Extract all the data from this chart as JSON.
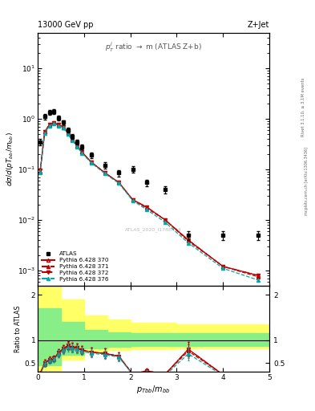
{
  "title_left": "13000 GeV pp",
  "title_right": "Z+Jet",
  "inner_title": "$p_T^j$ ratio $\\rightarrow$ m (ATLAS Z+b)",
  "watermark": "ATLAS_2020_I1788444",
  "ylabel_main": "$d\\sigma/d(pT_{bb}/m_{bb})$",
  "ylabel_ratio": "Ratio to ATLAS",
  "xlabel": "$p_{Tbb}/m_{bb}$",
  "right_label_top": "Rivet 3.1.10, ≥ 3.1M events",
  "right_label_bot": "mcplots.cern.ch [arXiv:1306.3436]",
  "xlim": [
    0,
    5.0
  ],
  "ylim_main": [
    0.0005,
    50
  ],
  "ylim_ratio": [
    0.3,
    2.2
  ],
  "atlas_x": [
    0.05,
    0.15,
    0.25,
    0.35,
    0.45,
    0.55,
    0.65,
    0.75,
    0.85,
    0.95,
    1.15,
    1.45,
    1.75,
    2.05,
    2.35,
    2.75,
    3.25,
    4.0,
    4.75
  ],
  "atlas_y": [
    0.35,
    1.1,
    1.35,
    1.4,
    1.05,
    0.85,
    0.6,
    0.45,
    0.35,
    0.28,
    0.19,
    0.12,
    0.085,
    0.1,
    0.055,
    0.04,
    0.005,
    0.005,
    0.005
  ],
  "atlas_yerr": [
    0.05,
    0.15,
    0.15,
    0.15,
    0.12,
    0.09,
    0.06,
    0.05,
    0.04,
    0.03,
    0.025,
    0.018,
    0.012,
    0.015,
    0.008,
    0.007,
    0.001,
    0.001,
    0.001
  ],
  "py370_y": [
    0.09,
    0.55,
    0.75,
    0.82,
    0.75,
    0.68,
    0.52,
    0.38,
    0.29,
    0.22,
    0.14,
    0.085,
    0.055,
    0.025,
    0.018,
    0.01,
    0.004,
    0.0012,
    0.0008
  ],
  "py371_y": [
    0.09,
    0.55,
    0.76,
    0.83,
    0.76,
    0.69,
    0.53,
    0.38,
    0.29,
    0.22,
    0.14,
    0.085,
    0.055,
    0.025,
    0.017,
    0.01,
    0.0038,
    0.0012,
    0.00075
  ],
  "py372_y": [
    0.095,
    0.56,
    0.77,
    0.84,
    0.76,
    0.69,
    0.53,
    0.38,
    0.29,
    0.22,
    0.14,
    0.085,
    0.055,
    0.025,
    0.018,
    0.01,
    0.004,
    0.0012,
    0.0008
  ],
  "py376_y": [
    0.085,
    0.52,
    0.73,
    0.8,
    0.73,
    0.66,
    0.5,
    0.37,
    0.28,
    0.21,
    0.135,
    0.082,
    0.053,
    0.024,
    0.016,
    0.009,
    0.0035,
    0.0011,
    0.00065
  ],
  "band_x": [
    0.0,
    0.1,
    0.5,
    1.0,
    1.5,
    2.0,
    2.5,
    3.0,
    3.5,
    4.0,
    4.5,
    5.0
  ],
  "yellow_lo": [
    0.3,
    0.3,
    0.58,
    0.75,
    0.78,
    0.8,
    0.8,
    0.82,
    0.82,
    0.82,
    0.82,
    0.82
  ],
  "yellow_hi": [
    2.2,
    2.2,
    1.9,
    1.55,
    1.45,
    1.38,
    1.38,
    1.35,
    1.35,
    1.35,
    1.35,
    1.35
  ],
  "green_lo": [
    0.45,
    0.45,
    0.68,
    0.82,
    0.85,
    0.87,
    0.87,
    0.88,
    0.88,
    0.88,
    0.88,
    0.88
  ],
  "green_hi": [
    1.7,
    1.7,
    1.4,
    1.22,
    1.18,
    1.15,
    1.15,
    1.15,
    1.15,
    1.15,
    1.15,
    1.15
  ],
  "color_370": "#c00000",
  "color_371": "#c00000",
  "color_372": "#c00000",
  "color_376": "#00aaaa"
}
